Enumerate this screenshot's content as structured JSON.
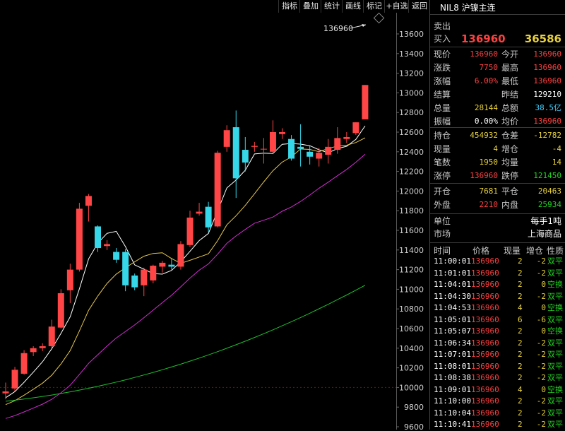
{
  "toolbar": [
    "指标",
    "叠加",
    "统计",
    "画线",
    "标记",
    "+自选",
    "返回"
  ],
  "chart": {
    "price_label": "136960",
    "axis_labels": [
      "13600",
      "13400",
      "13200",
      "13000",
      "12800",
      "12600",
      "12400",
      "12200",
      "12000",
      "11800",
      "11600",
      "11400",
      "11200",
      "11000",
      "10800",
      "10600",
      "10400",
      "10200",
      "10000",
      "9800",
      "9600"
    ],
    "colors": {
      "up": "#ff4545",
      "down": "#36d7e8",
      "ma5": "#ffffff",
      "ma10": "#e8c84a",
      "ma20": "#d42dd4",
      "ma60": "#1fbf2f"
    }
  },
  "chart_data": {
    "type": "candlestick",
    "ylim": [
      9600,
      13600
    ],
    "candles": [
      {
        "o": 9940,
        "h": 10050,
        "l": 9880,
        "c": 9960
      },
      {
        "o": 9990,
        "h": 10210,
        "l": 9960,
        "c": 10180
      },
      {
        "o": 10140,
        "h": 10380,
        "l": 10130,
        "c": 10350
      },
      {
        "o": 10360,
        "h": 10420,
        "l": 10320,
        "c": 10400
      },
      {
        "o": 10400,
        "h": 10450,
        "l": 10370,
        "c": 10420
      },
      {
        "o": 10420,
        "h": 10690,
        "l": 10400,
        "c": 10620
      },
      {
        "o": 10610,
        "h": 11000,
        "l": 10600,
        "c": 10960
      },
      {
        "o": 10990,
        "h": 11260,
        "l": 10860,
        "c": 11200
      },
      {
        "o": 11200,
        "h": 11880,
        "l": 11180,
        "c": 11820
      },
      {
        "o": 11850,
        "h": 11970,
        "l": 11690,
        "c": 11950
      },
      {
        "o": 11640,
        "h": 11650,
        "l": 11380,
        "c": 11420
      },
      {
        "o": 11440,
        "h": 11500,
        "l": 11400,
        "c": 11460
      },
      {
        "o": 11380,
        "h": 11420,
        "l": 11270,
        "c": 11300
      },
      {
        "o": 11380,
        "h": 11410,
        "l": 10980,
        "c": 11040
      },
      {
        "o": 11140,
        "h": 11160,
        "l": 10990,
        "c": 11020
      },
      {
        "o": 11040,
        "h": 11220,
        "l": 10930,
        "c": 11200
      },
      {
        "o": 11090,
        "h": 11250,
        "l": 11060,
        "c": 11240
      },
      {
        "o": 11230,
        "h": 11290,
        "l": 11170,
        "c": 11270
      },
      {
        "o": 11250,
        "h": 11320,
        "l": 11200,
        "c": 11230
      },
      {
        "o": 11230,
        "h": 11490,
        "l": 11200,
        "c": 11460
      },
      {
        "o": 11450,
        "h": 11800,
        "l": 11430,
        "c": 11730
      },
      {
        "o": 11770,
        "h": 11880,
        "l": 11750,
        "c": 11790
      },
      {
        "o": 11840,
        "h": 11890,
        "l": 11580,
        "c": 11630
      },
      {
        "o": 11640,
        "h": 12410,
        "l": 11630,
        "c": 12390
      },
      {
        "o": 12450,
        "h": 12670,
        "l": 12400,
        "c": 12620
      },
      {
        "o": 12650,
        "h": 12820,
        "l": 11930,
        "c": 12130
      },
      {
        "o": 12420,
        "h": 12550,
        "l": 12200,
        "c": 12290
      },
      {
        "o": 12450,
        "h": 12500,
        "l": 12400,
        "c": 12460
      },
      {
        "o": 12430,
        "h": 12540,
        "l": 12280,
        "c": 12430
      },
      {
        "o": 12400,
        "h": 12720,
        "l": 12390,
        "c": 12600
      },
      {
        "o": 12580,
        "h": 12640,
        "l": 12530,
        "c": 12600
      },
      {
        "o": 12530,
        "h": 12570,
        "l": 12310,
        "c": 12330
      },
      {
        "o": 12450,
        "h": 12680,
        "l": 12250,
        "c": 12430
      },
      {
        "o": 12400,
        "h": 12460,
        "l": 12270,
        "c": 12350
      },
      {
        "o": 12330,
        "h": 12440,
        "l": 12250,
        "c": 12390
      },
      {
        "o": 12370,
        "h": 12530,
        "l": 12280,
        "c": 12450
      },
      {
        "o": 12420,
        "h": 12650,
        "l": 12380,
        "c": 12540
      },
      {
        "o": 12530,
        "h": 12600,
        "l": 12490,
        "c": 12550
      },
      {
        "o": 12590,
        "h": 12700,
        "l": 12570,
        "c": 12700
      },
      {
        "o": 12730,
        "h": 13080,
        "l": 12730,
        "c": 13080
      }
    ]
  },
  "panel": {
    "title": "NIL8 沪镍主连",
    "sell_label": "卖出",
    "buy_label": "买入",
    "buy_price": "136960",
    "buy_vol": "36586",
    "quote_rows": [
      {
        "l1": "现价",
        "v1": "136960",
        "c1": "red",
        "l2": "今开",
        "v2": "136960",
        "c2": "red"
      },
      {
        "l1": "涨跌",
        "v1": "7750",
        "c1": "red",
        "l2": "最高",
        "v2": "136960",
        "c2": "red"
      },
      {
        "l1": "涨幅",
        "v1": "6.00%",
        "c1": "red",
        "l2": "最低",
        "v2": "136960",
        "c2": "red"
      },
      {
        "l1": "结算",
        "v1": "",
        "c1": "white",
        "l2": "昨结",
        "v2": "129210",
        "c2": "white"
      },
      {
        "l1": "总量",
        "v1": "28144",
        "c1": "yellow",
        "l2": "总额",
        "v2": "38.5亿",
        "c2": "cyan"
      },
      {
        "l1": "振幅",
        "v1": "0.00%",
        "c1": "white",
        "l2": "均价",
        "v2": "136960",
        "c2": "red"
      }
    ],
    "pos_rows": [
      {
        "l1": "持仓",
        "v1": "454932",
        "c1": "yellow",
        "l2": "仓差",
        "v2": "-12782",
        "c2": "yellow"
      },
      {
        "l1": "现量",
        "v1": "4",
        "c1": "yellow",
        "l2": "增仓",
        "v2": "-4",
        "c2": "yellow"
      },
      {
        "l1": "笔数",
        "v1": "1950",
        "c1": "yellow",
        "l2": "均量",
        "v2": "14",
        "c2": "yellow"
      },
      {
        "l1": "涨停",
        "v1": "136960",
        "c1": "red",
        "l2": "跌停",
        "v2": "121450",
        "c2": "green"
      }
    ],
    "open_rows": [
      {
        "l1": "开仓",
        "v1": "7681",
        "c1": "yellow",
        "l2": "平仓",
        "v2": "20463",
        "c2": "yellow"
      },
      {
        "l1": "外盘",
        "v1": "2210",
        "c1": "red",
        "l2": "内盘",
        "v2": "25934",
        "c2": "green"
      }
    ],
    "unit_label": "单位",
    "unit_value": "每手1吨",
    "market_label": "市场",
    "market_value": "上海商品",
    "trade_headers": [
      "时间",
      "价格",
      "现量",
      "增仓",
      "性质"
    ],
    "trades": [
      {
        "t": "11:00:01",
        "p": "136960",
        "v": "2",
        "d": "-2",
        "n": "双平"
      },
      {
        "t": "11:01:01",
        "p": "136960",
        "v": "2",
        "d": "-2",
        "n": "双平"
      },
      {
        "t": "11:04:01",
        "p": "136960",
        "v": "2",
        "d": "0",
        "n": "空换"
      },
      {
        "t": "11:04:30",
        "p": "136960",
        "v": "2",
        "d": "-2",
        "n": "双平"
      },
      {
        "t": "11:04:53",
        "p": "136960",
        "v": "4",
        "d": "0",
        "n": "空换"
      },
      {
        "t": "11:05:01",
        "p": "136960",
        "v": "6",
        "d": "-6",
        "n": "双平"
      },
      {
        "t": "11:05:07",
        "p": "136960",
        "v": "2",
        "d": "0",
        "n": "空换"
      },
      {
        "t": "11:06:34",
        "p": "136960",
        "v": "2",
        "d": "-2",
        "n": "双平"
      },
      {
        "t": "11:07:01",
        "p": "136960",
        "v": "2",
        "d": "-2",
        "n": "双平"
      },
      {
        "t": "11:08:01",
        "p": "136960",
        "v": "2",
        "d": "-2",
        "n": "双平"
      },
      {
        "t": "11:08:38",
        "p": "136960",
        "v": "2",
        "d": "-2",
        "n": "双平"
      },
      {
        "t": "11:09:01",
        "p": "136960",
        "v": "4",
        "d": "0",
        "n": "空换"
      },
      {
        "t": "11:10:00",
        "p": "136960",
        "v": "2",
        "d": "-2",
        "n": "双平"
      },
      {
        "t": "11:10:04",
        "p": "136960",
        "v": "2",
        "d": "-2",
        "n": "双平"
      },
      {
        "t": "11:10:41",
        "p": "136960",
        "v": "2",
        "d": "-2",
        "n": "双平"
      }
    ]
  }
}
